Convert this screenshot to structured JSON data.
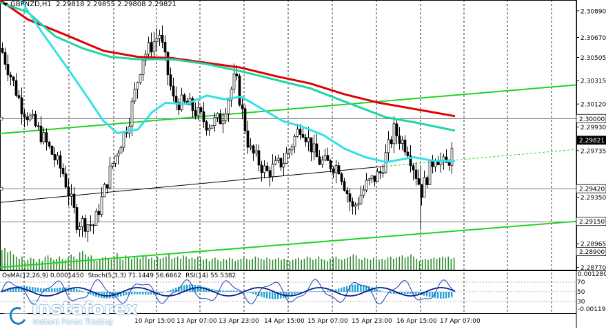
{
  "header": {
    "symbol": "GBPNZD,H1",
    "ohlc": "2.29818 2.29855 2.29808 2.29821"
  },
  "oscillators": {
    "osma": "OsMA(12,26,9) 0.0001450",
    "stoch": "Stoch(5,3,3) 71.1449 56.6662",
    "rsi": "RSI(14) 55.5382"
  },
  "logo": {
    "name": "instaforex",
    "tagline": "Instant Forex Trading"
  },
  "colors": {
    "ma_red": "#e00000",
    "ma_teal": "#1ed6a4",
    "ma_cyan": "#33e0ea",
    "channel_green": "#22d322",
    "volume": "#2d8b2d",
    "candle": "#000000"
  },
  "chart_data": {
    "type": "candlestick",
    "symbol": "GBPNZD",
    "timeframe": "H1",
    "ylim": [
      2.2875,
      2.3098
    ],
    "y_ticks": [
      "2.30890",
      "2.30670",
      "2.30505",
      "2.30315",
      "2.30120",
      "2.29930",
      "2.29735",
      "2.29350",
      "2.28965",
      "2.28770"
    ],
    "x_ticks": [
      "10 Apr 15:00",
      "13 Apr 07:00",
      "13 Apr 23:00",
      "14 Apr 15:00",
      "15 Apr 07:00",
      "15 Apr 23:00",
      "16 Apr 15:00",
      "17 Apr 07:00"
    ],
    "price_labels": [
      {
        "value": "2.30000",
        "price": 2.3,
        "style": "white"
      },
      {
        "value": "2.29821",
        "price": 2.29821,
        "style": "black"
      },
      {
        "value": "2.29420",
        "price": 2.2942,
        "style": "white"
      },
      {
        "value": "2.29150",
        "price": 2.2915,
        "style": "white"
      },
      {
        "value": "2.28900",
        "price": 2.289,
        "style": "white"
      }
    ],
    "horizontal_levels": [
      2.3,
      2.2942,
      2.2915
    ],
    "moving_averages": [
      {
        "color": "red",
        "points": [
          [
            0,
            2.3098
          ],
          [
            40,
            2.3082
          ],
          [
            100,
            2.3068
          ],
          [
            150,
            2.3056
          ],
          [
            200,
            2.3051
          ],
          [
            250,
            2.305
          ],
          [
            300,
            2.3046
          ],
          [
            350,
            2.3042
          ],
          [
            400,
            2.3035
          ],
          [
            450,
            2.3029
          ],
          [
            500,
            2.302
          ],
          [
            550,
            2.3013
          ],
          [
            600,
            2.3008
          ],
          [
            660,
            2.3002
          ]
        ]
      },
      {
        "color": "teal",
        "points": [
          [
            0,
            2.3096
          ],
          [
            40,
            2.3088
          ],
          [
            80,
            2.3068
          ],
          [
            120,
            2.3058
          ],
          [
            160,
            2.3051
          ],
          [
            200,
            2.3049
          ],
          [
            250,
            2.3049
          ],
          [
            300,
            2.3045
          ],
          [
            350,
            2.3039
          ],
          [
            400,
            2.3032
          ],
          [
            450,
            2.3025
          ],
          [
            500,
            2.3014
          ],
          [
            560,
            2.3001
          ],
          [
            600,
            2.2997
          ],
          [
            660,
            2.299
          ]
        ]
      },
      {
        "color": "cyan",
        "points": [
          [
            30,
            2.3098
          ],
          [
            60,
            2.3072
          ],
          [
            100,
            2.304
          ],
          [
            130,
            2.3015
          ],
          [
            150,
            2.2998
          ],
          [
            170,
            2.2988
          ],
          [
            200,
            2.2991
          ],
          [
            220,
            2.3005
          ],
          [
            240,
            2.3013
          ],
          [
            270,
            2.3012
          ],
          [
            300,
            2.3019
          ],
          [
            325,
            2.3016
          ],
          [
            350,
            2.3018
          ],
          [
            380,
            2.3008
          ],
          [
            410,
            2.2998
          ],
          [
            440,
            2.2993
          ],
          [
            470,
            2.2986
          ],
          [
            500,
            2.2975
          ],
          [
            530,
            2.2968
          ],
          [
            560,
            2.2964
          ],
          [
            600,
            2.2968
          ],
          [
            630,
            2.2965
          ],
          [
            660,
            2.2965
          ]
        ]
      }
    ],
    "channel_lines": [
      {
        "color": "green",
        "width": 2,
        "from": [
          0,
          2.29876
        ],
        "to": [
          836,
          2.30278
        ]
      },
      {
        "color": "black",
        "width": 1,
        "from": [
          0,
          2.29307
        ],
        "to": [
          560,
          2.29606
        ]
      },
      {
        "color": "green",
        "width": 2,
        "from": [
          0,
          2.2877
        ],
        "to": [
          836,
          2.2915
        ]
      }
    ],
    "volume_bars": [
      18,
      20,
      16,
      17,
      14,
      12,
      10,
      12,
      7,
      9,
      11,
      10,
      7,
      10,
      8,
      12,
      13,
      11,
      9,
      10,
      12,
      10,
      9,
      11,
      14,
      12,
      10,
      16,
      17,
      14,
      12,
      13,
      9,
      8,
      10,
      11,
      12,
      10,
      9,
      12,
      15,
      10,
      9,
      13,
      11,
      10,
      12,
      11,
      10,
      13,
      12,
      10,
      11,
      9,
      12,
      10,
      11,
      12,
      14,
      10,
      11,
      12,
      10,
      13,
      12,
      10,
      11,
      10,
      12,
      11,
      9,
      10,
      8,
      10,
      11,
      9,
      8,
      10,
      9,
      11,
      10,
      8,
      9,
      10,
      11,
      10,
      9,
      10,
      12,
      11,
      10,
      9,
      11,
      10,
      9,
      10,
      11,
      9,
      10,
      9,
      8,
      9,
      10,
      11,
      9,
      10,
      12,
      11,
      9,
      10,
      12,
      10,
      9,
      8,
      10,
      11,
      12,
      10,
      9,
      10,
      11,
      12,
      14,
      13,
      10,
      9,
      11,
      10,
      9,
      11,
      10,
      9,
      10,
      9,
      11,
      12,
      10,
      11,
      12,
      13,
      11,
      12,
      14,
      12,
      10,
      8,
      9,
      10,
      9,
      10,
      11,
      10,
      11,
      12,
      11,
      12,
      10,
      11
    ]
  }
}
